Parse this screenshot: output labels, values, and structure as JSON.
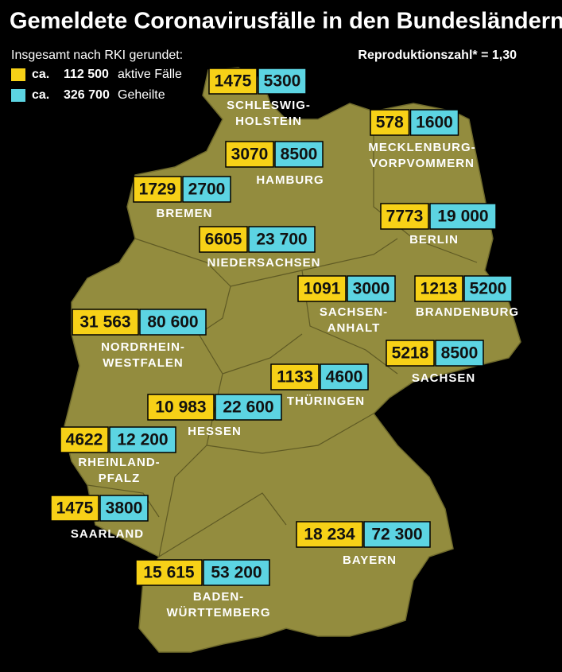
{
  "title": "Gemeldete Coronavirusfälle in den Bundesländern",
  "legend": {
    "note": "Insgesamt nach RKI gerundet:",
    "items": [
      {
        "prefix": "ca.",
        "value": "112 500",
        "label": "aktive Fälle",
        "color": "#f7d117"
      },
      {
        "prefix": "ca.",
        "value": "326 700",
        "label": "Geheilte",
        "color": "#5cd4e2"
      }
    ]
  },
  "reproduction": "Reproduktionszahl* = 1,30",
  "states": [
    {
      "name": [
        "SCHLESWIG-",
        "HOLSTEIN"
      ],
      "active": "1475",
      "recovered": "5300"
    },
    {
      "name": [
        "MECKLENBURG-",
        "VORPVOMMERN"
      ],
      "active": "578",
      "recovered": "1600"
    },
    {
      "name": [
        "HAMBURG"
      ],
      "active": "3070",
      "recovered": "8500"
    },
    {
      "name": [
        "BREMEN"
      ],
      "active": "1729",
      "recovered": "2700"
    },
    {
      "name": [
        "BERLIN"
      ],
      "active": "7773",
      "recovered": "19 000"
    },
    {
      "name": [
        "NIEDERSACHSEN"
      ],
      "active": "6605",
      "recovered": "23 700"
    },
    {
      "name": [
        "SACHSEN-",
        "ANHALT"
      ],
      "active": "1091",
      "recovered": "3000"
    },
    {
      "name": [
        "BRANDENBURG"
      ],
      "active": "1213",
      "recovered": "5200"
    },
    {
      "name": [
        "NORDRHEIN-",
        "WESTFALEN"
      ],
      "active": "31 563",
      "recovered": "80 600"
    },
    {
      "name": [
        "SACHSEN"
      ],
      "active": "5218",
      "recovered": "8500"
    },
    {
      "name": [
        "THÜRINGEN"
      ],
      "active": "1133",
      "recovered": "4600"
    },
    {
      "name": [
        "HESSEN"
      ],
      "active": "10 983",
      "recovered": "22 600"
    },
    {
      "name": [
        "RHEINLAND-",
        "PFALZ"
      ],
      "active": "4622",
      "recovered": "12 200"
    },
    {
      "name": [
        "SAARLAND"
      ],
      "active": "1475",
      "recovered": "3800"
    },
    {
      "name": [
        "BAYERN"
      ],
      "active": "18 234",
      "recovered": "72 300"
    },
    {
      "name": [
        "BADEN-",
        "WÜRTTEMBERG"
      ],
      "active": "15 615",
      "recovered": "53 200"
    }
  ]
}
